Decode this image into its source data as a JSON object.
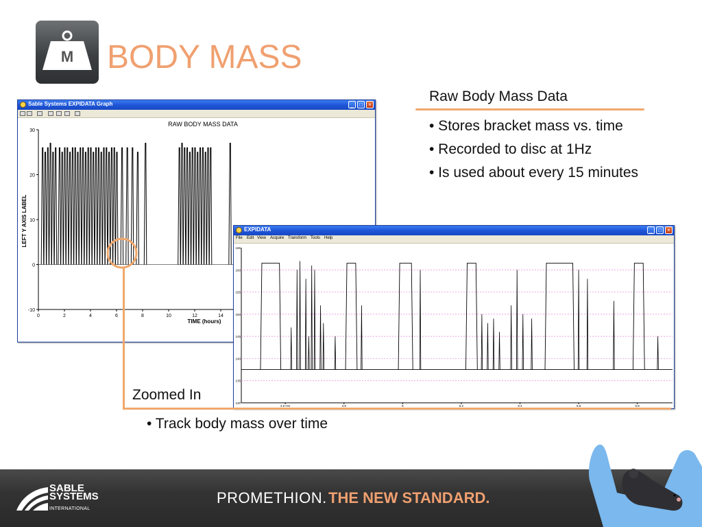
{
  "slide": {
    "title": "BODY MASS",
    "logo_letter": "M",
    "raw_heading": "Raw Body Mass Data",
    "bullets": [
      "• Stores bracket mass vs. time",
      "• Recorded to disc at 1Hz",
      "• Is used about every 15 minutes"
    ],
    "zoom_label": "Zoomed In",
    "track_bullet": "• Track body mass over time"
  },
  "window1": {
    "title": "Sable Systems EXPIDATA Graph",
    "toolbar_icons": [
      "open-icon",
      "save-icon",
      "print-icon",
      "zoom-icon",
      "marker-icon",
      "crop-icon",
      "camera-icon"
    ]
  },
  "window2": {
    "title": "EXPIDATA",
    "menu": [
      "File",
      "Edit",
      "View",
      "Acquire",
      "Transform",
      "Tools",
      "Help"
    ]
  },
  "chart_data": [
    {
      "type": "line",
      "title": "RAW BODY MASS DATA",
      "xlabel": "TIME (hours)",
      "ylabel": "LEFT Y AXIS LABEL",
      "xlim": [
        0,
        15
      ],
      "ylim": [
        -10,
        30
      ],
      "xticks": [
        "0",
        "2",
        "4",
        "6",
        "8",
        "10",
        "12",
        "14"
      ],
      "yticks": [
        "-10",
        "0",
        "10",
        "20",
        "30"
      ],
      "baseline": 0,
      "spikes": [
        {
          "x": 0.3,
          "y": 26
        },
        {
          "x": 0.5,
          "y": 25
        },
        {
          "x": 0.7,
          "y": 26
        },
        {
          "x": 0.9,
          "y": 27
        },
        {
          "x": 1.1,
          "y": 25
        },
        {
          "x": 1.3,
          "y": 26
        },
        {
          "x": 1.6,
          "y": 26
        },
        {
          "x": 1.8,
          "y": 25
        },
        {
          "x": 2.0,
          "y": 26
        },
        {
          "x": 2.2,
          "y": 26
        },
        {
          "x": 2.4,
          "y": 25
        },
        {
          "x": 2.6,
          "y": 26
        },
        {
          "x": 2.8,
          "y": 26
        },
        {
          "x": 3.0,
          "y": 25
        },
        {
          "x": 3.2,
          "y": 26
        },
        {
          "x": 3.4,
          "y": 26
        },
        {
          "x": 3.6,
          "y": 25
        },
        {
          "x": 3.8,
          "y": 26
        },
        {
          "x": 4.0,
          "y": 26
        },
        {
          "x": 4.2,
          "y": 25
        },
        {
          "x": 4.4,
          "y": 26
        },
        {
          "x": 4.6,
          "y": 26
        },
        {
          "x": 4.8,
          "y": 25
        },
        {
          "x": 5.0,
          "y": 26
        },
        {
          "x": 5.2,
          "y": 26
        },
        {
          "x": 5.4,
          "y": 25
        },
        {
          "x": 5.6,
          "y": 26
        },
        {
          "x": 5.8,
          "y": 26
        },
        {
          "x": 6.0,
          "y": 25
        },
        {
          "x": 6.4,
          "y": 26
        },
        {
          "x": 6.8,
          "y": 26
        },
        {
          "x": 7.2,
          "y": 26
        },
        {
          "x": 7.6,
          "y": 25
        },
        {
          "x": 8.2,
          "y": 27
        },
        {
          "x": 10.8,
          "y": 26
        },
        {
          "x": 11.0,
          "y": 27
        },
        {
          "x": 11.2,
          "y": 26
        },
        {
          "x": 11.4,
          "y": 26
        },
        {
          "x": 11.6,
          "y": 25
        },
        {
          "x": 11.8,
          "y": 26
        },
        {
          "x": 12.0,
          "y": 26
        },
        {
          "x": 12.2,
          "y": 25
        },
        {
          "x": 12.4,
          "y": 26
        },
        {
          "x": 12.6,
          "y": 26
        },
        {
          "x": 12.8,
          "y": 25
        },
        {
          "x": 13.0,
          "y": 26
        },
        {
          "x": 13.2,
          "y": 26
        },
        {
          "x": 14.7,
          "y": 27
        }
      ]
    },
    {
      "type": "line",
      "xticks": [
        "4.6 Hrs",
        "4.8",
        "5",
        "5.2",
        "5.4",
        "5.6",
        "5.8"
      ],
      "yticks": [
        "165",
        "160",
        "155",
        "150",
        "145",
        "140",
        "135",
        "130"
      ],
      "xlim": [
        4.45,
        5.92
      ],
      "ylim": [
        130,
        165
      ],
      "baseline": 137.5,
      "plateaus": [
        {
          "x0": 4.52,
          "x1": 4.58,
          "y": 161.5
        },
        {
          "x0": 4.81,
          "x1": 4.84,
          "y": 161.5
        },
        {
          "x0": 4.99,
          "x1": 5.03,
          "y": 161.5
        },
        {
          "x0": 5.22,
          "x1": 5.25,
          "y": 161.5
        },
        {
          "x0": 5.49,
          "x1": 5.58,
          "y": 161.5
        },
        {
          "x0": 5.79,
          "x1": 5.82,
          "y": 161.5
        }
      ],
      "spikes": [
        {
          "x": 4.62,
          "y": 147
        },
        {
          "x": 4.64,
          "y": 160
        },
        {
          "x": 4.65,
          "y": 162
        },
        {
          "x": 4.67,
          "y": 158
        },
        {
          "x": 4.68,
          "y": 145
        },
        {
          "x": 4.69,
          "y": 161
        },
        {
          "x": 4.7,
          "y": 160
        },
        {
          "x": 4.72,
          "y": 152
        },
        {
          "x": 4.73,
          "y": 148
        },
        {
          "x": 4.77,
          "y": 145
        },
        {
          "x": 4.86,
          "y": 152
        },
        {
          "x": 5.06,
          "y": 160
        },
        {
          "x": 5.27,
          "y": 150
        },
        {
          "x": 5.29,
          "y": 148
        },
        {
          "x": 5.31,
          "y": 149
        },
        {
          "x": 5.33,
          "y": 146
        },
        {
          "x": 5.37,
          "y": 152
        },
        {
          "x": 5.39,
          "y": 160
        },
        {
          "x": 5.41,
          "y": 150
        },
        {
          "x": 5.44,
          "y": 149
        },
        {
          "x": 5.6,
          "y": 160
        },
        {
          "x": 5.63,
          "y": 158
        },
        {
          "x": 5.72,
          "y": 153
        },
        {
          "x": 5.87,
          "y": 145
        }
      ]
    }
  ],
  "footer": {
    "brand_top": "SABLE",
    "brand_mid": "SYSTEMS",
    "brand_sub": "INTERNATIONAL",
    "tagline_a": "PROMETHION.",
    "tagline_b": "THE NEW STANDARD."
  },
  "colors": {
    "accent": "#f0a070",
    "titlebar": "#1f56d8",
    "footer_bg": "#333333",
    "gridline": "#e080e0"
  }
}
